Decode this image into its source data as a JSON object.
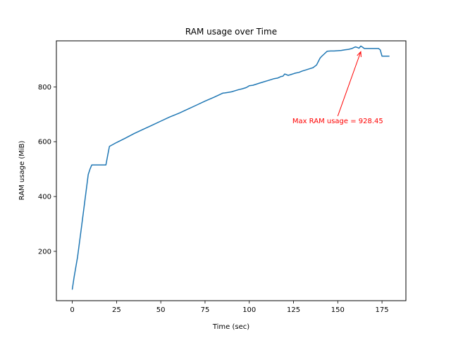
{
  "chart_data": {
    "type": "line",
    "title": "RAM usage over Time",
    "xlabel": "Time (sec)",
    "ylabel": "RAM usage (MiB)",
    "xlim": [
      -9,
      188.5
    ],
    "ylim": [
      20,
      968
    ],
    "xticks": [
      0,
      25,
      50,
      75,
      100,
      125,
      150,
      175
    ],
    "yticks": [
      200,
      400,
      600,
      800
    ],
    "grid": false,
    "series": [
      {
        "color": "#1f77b4",
        "x": [
          0,
          1,
          3,
          5,
          7,
          9,
          10,
          11,
          13,
          15,
          17,
          19,
          20,
          21,
          25,
          30,
          35,
          40,
          45,
          50,
          55,
          60,
          65,
          70,
          75,
          80,
          85,
          86,
          88,
          90,
          92,
          94,
          96,
          98,
          99,
          100,
          102,
          104,
          106,
          108,
          110,
          112,
          114,
          116,
          118,
          119,
          120,
          122,
          124,
          125,
          126,
          128,
          130,
          132,
          134,
          136,
          138,
          140,
          141,
          142,
          144,
          146,
          148,
          150,
          152,
          154,
          156,
          158,
          159,
          160,
          161,
          162,
          163,
          164,
          165,
          167,
          169,
          171,
          172,
          173,
          174,
          175,
          177,
          179
        ],
        "y": [
          62,
          105,
          180,
          280,
          380,
          480,
          500,
          515,
          515,
          515,
          515,
          515,
          550,
          583,
          597,
          613,
          630,
          645,
          660,
          675,
          690,
          703,
          718,
          733,
          748,
          762,
          777,
          778,
          780,
          782,
          786,
          790,
          793,
          797,
          800,
          804,
          806,
          810,
          814,
          818,
          822,
          826,
          830,
          832,
          838,
          839,
          847,
          842,
          846,
          848,
          850,
          853,
          858,
          862,
          866,
          870,
          880,
          905,
          912,
          918,
          930,
          931,
          931,
          932,
          933,
          935,
          937,
          940,
          943,
          946,
          944,
          941,
          949,
          945,
          940,
          940,
          940,
          940,
          940,
          940,
          935,
          912,
          912,
          912
        ]
      }
    ],
    "annotations": [
      {
        "text": "Max RAM usage = 928.45",
        "color": "#ff0000",
        "point": [
          163,
          928.45
        ],
        "text_anchor": [
          150,
          668
        ]
      }
    ]
  }
}
